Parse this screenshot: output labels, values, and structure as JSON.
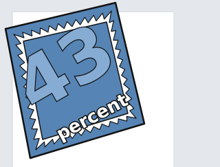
{
  "badge": {
    "number": "43",
    "unit": "percent"
  }
}
